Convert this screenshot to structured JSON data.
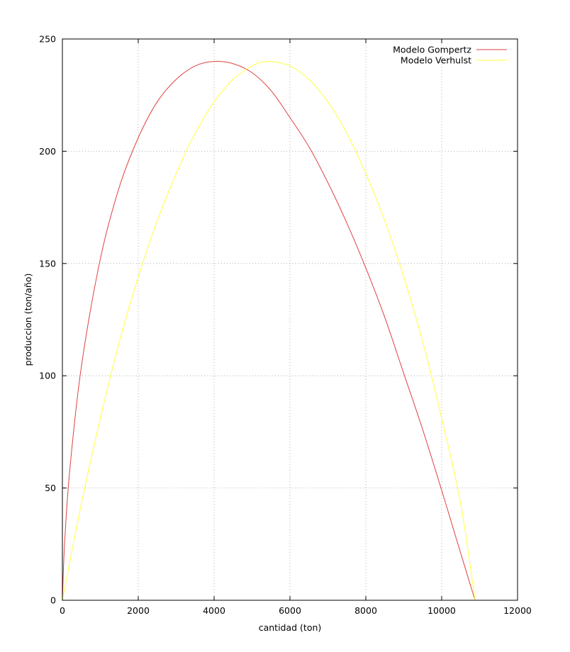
{
  "chart_data": {
    "type": "line",
    "xlabel": "cantidad (ton)",
    "ylabel": "produccion (ton/año)",
    "xlim": [
      0,
      12000
    ],
    "ylim": [
      0,
      250
    ],
    "xticks": [
      0,
      2000,
      4000,
      6000,
      8000,
      10000,
      12000
    ],
    "yticks": [
      0,
      50,
      100,
      150,
      200,
      250
    ],
    "grid": true,
    "legend_position": "top-right",
    "series": [
      {
        "name": "Modelo Gompertz",
        "color": "#e04040",
        "x": [
          0,
          60,
          200,
          500,
          1000,
          1500,
          2000,
          2500,
          3000,
          3500,
          4000,
          4500,
          5000,
          5500,
          6000,
          6500,
          7000,
          7500,
          8000,
          8500,
          9000,
          9500,
          10000,
          10500,
          10880
        ],
        "y": [
          0,
          26,
          59,
          104,
          152,
          184,
          206,
          222,
          232,
          238,
          240,
          239,
          235,
          227,
          215,
          202,
          186,
          168,
          148,
          126,
          101,
          76,
          49,
          21,
          0
        ]
      },
      {
        "name": "Modelo Verhulst",
        "color": "#ffff40",
        "x": [
          0,
          500,
          1000,
          1500,
          2000,
          2500,
          3000,
          3500,
          4000,
          4500,
          5000,
          5440,
          6000,
          6500,
          7000,
          7500,
          8000,
          8500,
          9000,
          9500,
          10000,
          10500,
          10880
        ],
        "y": [
          0,
          43,
          81,
          115,
          144,
          169,
          190,
          208,
          222,
          232,
          238,
          240,
          238,
          232,
          222,
          208,
          190,
          169,
          144,
          115,
          81,
          43,
          0
        ]
      }
    ]
  }
}
